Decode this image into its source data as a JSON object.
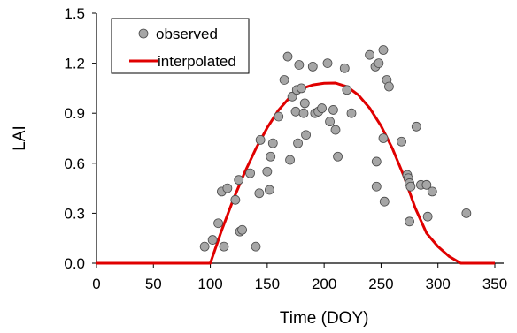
{
  "chart_data": {
    "type": "scatter",
    "title": "",
    "xlabel": "Time (DOY)",
    "ylabel": "LAI",
    "xlim": [
      0,
      350
    ],
    "ylim": [
      0.0,
      1.5
    ],
    "x_ticks": [
      "0",
      "50",
      "100",
      "150",
      "200",
      "250",
      "300",
      "350"
    ],
    "y_ticks": [
      "0.0",
      "0.3",
      "0.6",
      "0.9",
      "1.2",
      "1.5"
    ],
    "grid": false,
    "legend_position": "top-left",
    "legend": [
      {
        "label": "observed",
        "marker": "circle",
        "color": "#a6a6a6"
      },
      {
        "label": "interpolated",
        "marker": "line",
        "color": "#e00000"
      }
    ],
    "series": [
      {
        "name": "observed",
        "type": "scatter",
        "color": "#a6a6a6",
        "points": [
          [
            95,
            0.1
          ],
          [
            102,
            0.14
          ],
          [
            107,
            0.24
          ],
          [
            110,
            0.43
          ],
          [
            112,
            0.1
          ],
          [
            115,
            0.45
          ],
          [
            122,
            0.38
          ],
          [
            125,
            0.5
          ],
          [
            126,
            0.19
          ],
          [
            128,
            0.2
          ],
          [
            135,
            0.54
          ],
          [
            140,
            0.1
          ],
          [
            143,
            0.42
          ],
          [
            144,
            0.74
          ],
          [
            150,
            0.55
          ],
          [
            152,
            0.44
          ],
          [
            153,
            0.64
          ],
          [
            155,
            0.72
          ],
          [
            160,
            0.88
          ],
          [
            165,
            1.1
          ],
          [
            168,
            1.24
          ],
          [
            170,
            0.62
          ],
          [
            172,
            1.0
          ],
          [
            175,
            0.91
          ],
          [
            176,
            1.04
          ],
          [
            177,
            0.72
          ],
          [
            178,
            1.19
          ],
          [
            180,
            1.05
          ],
          [
            182,
            0.9
          ],
          [
            183,
            0.96
          ],
          [
            184,
            0.77
          ],
          [
            190,
            1.18
          ],
          [
            192,
            0.9
          ],
          [
            195,
            0.91
          ],
          [
            198,
            0.93
          ],
          [
            203,
            1.2
          ],
          [
            205,
            0.85
          ],
          [
            208,
            0.92
          ],
          [
            210,
            0.8
          ],
          [
            212,
            0.64
          ],
          [
            218,
            1.17
          ],
          [
            220,
            1.04
          ],
          [
            224,
            0.9
          ],
          [
            240,
            1.25
          ],
          [
            245,
            1.18
          ],
          [
            246,
            0.61
          ],
          [
            248,
            1.2
          ],
          [
            246,
            0.46
          ],
          [
            252,
            1.28
          ],
          [
            252,
            0.75
          ],
          [
            253,
            0.37
          ],
          [
            255,
            1.1
          ],
          [
            257,
            1.06
          ],
          [
            268,
            0.73
          ],
          [
            273,
            0.53
          ],
          [
            274,
            0.51
          ],
          [
            275,
            0.48
          ],
          [
            275,
            0.25
          ],
          [
            276,
            0.46
          ],
          [
            281,
            0.82
          ],
          [
            285,
            0.47
          ],
          [
            290,
            0.47
          ],
          [
            291,
            0.28
          ],
          [
            295,
            0.43
          ],
          [
            325,
            0.3
          ]
        ]
      },
      {
        "name": "interpolated",
        "type": "line",
        "color": "#e00000",
        "points": [
          [
            0,
            0.0
          ],
          [
            100,
            0.0
          ],
          [
            110,
            0.198
          ],
          [
            120,
            0.379
          ],
          [
            130,
            0.542
          ],
          [
            140,
            0.687
          ],
          [
            150,
            0.813
          ],
          [
            160,
            0.919
          ],
          [
            170,
            0.997
          ],
          [
            180,
            1.047
          ],
          [
            190,
            1.07
          ],
          [
            200,
            1.08
          ],
          [
            210,
            1.081
          ],
          [
            220,
            1.06
          ],
          [
            230,
            1.01
          ],
          [
            240,
            0.931
          ],
          [
            250,
            0.824
          ],
          [
            260,
            0.688
          ],
          [
            270,
            0.524
          ],
          [
            280,
            0.332
          ],
          [
            290,
            0.18
          ],
          [
            300,
            0.1
          ],
          [
            310,
            0.04
          ],
          [
            320,
            0.0
          ],
          [
            350,
            0.0
          ]
        ]
      }
    ]
  }
}
